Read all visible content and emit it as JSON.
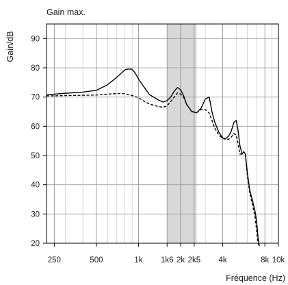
{
  "chart_data": {
    "type": "line",
    "title": "Gain max.",
    "ylabel": "Gain/dB",
    "xlabel": "Fréquence (Hz)",
    "x_scale": "log",
    "xlim": [
      220,
      10000
    ],
    "ylim": [
      20,
      95
    ],
    "grid": true,
    "x_ticks": [
      {
        "value": 250,
        "label": "250"
      },
      {
        "value": 500,
        "label": "500"
      },
      {
        "value": 1000,
        "label": "1k"
      },
      {
        "value": 1600,
        "label": "1k6"
      },
      {
        "value": 2000,
        "label": "2k"
      },
      {
        "value": 2500,
        "label": "2k5"
      },
      {
        "value": 4000,
        "label": "4k"
      },
      {
        "value": 8000,
        "label": "8k"
      },
      {
        "value": 10000,
        "label": "10k"
      }
    ],
    "y_ticks": [
      {
        "value": 20,
        "label": "20"
      },
      {
        "value": 30,
        "label": "30"
      },
      {
        "value": 40,
        "label": "40"
      },
      {
        "value": 50,
        "label": "50"
      },
      {
        "value": 60,
        "label": "60"
      },
      {
        "value": 70,
        "label": "70"
      },
      {
        "value": 80,
        "label": "80"
      },
      {
        "value": 90,
        "label": "90"
      }
    ],
    "shaded_band": {
      "x_from": 1600,
      "x_to": 2600,
      "color": "#d8d8d8"
    },
    "series": [
      {
        "style": "solid",
        "color": "#000000",
        "x": [
          220,
          250,
          300,
          400,
          500,
          600,
          700,
          800,
          850,
          900,
          950,
          1000,
          1100,
          1200,
          1400,
          1500,
          1600,
          1700,
          1800,
          1900,
          2000,
          2100,
          2200,
          2400,
          2600,
          2800,
          3000,
          3200,
          3350,
          3500,
          3750,
          4000,
          4200,
          4400,
          4600,
          4800,
          5000,
          5150,
          5300,
          5500,
          5650,
          5800,
          6000,
          6250,
          6500,
          6800,
          7000,
          7150,
          7300
        ],
        "y": [
          70.7,
          71.0,
          71.3,
          71.7,
          72.3,
          74.2,
          76.8,
          79.3,
          79.6,
          79.5,
          78.1,
          76.2,
          73.3,
          70.8,
          68.9,
          68.3,
          68.8,
          70.0,
          72.0,
          73.3,
          72.5,
          70.5,
          67.6,
          65.0,
          64.6,
          66.2,
          69.3,
          70.0,
          65.0,
          61.5,
          58.0,
          56.0,
          55.8,
          56.6,
          58.3,
          61.3,
          62.0,
          58.5,
          53.5,
          50.5,
          51.3,
          50.5,
          44.0,
          38.0,
          35.0,
          31.0,
          27.0,
          22.0,
          19.0
        ]
      },
      {
        "style": "dashed",
        "color": "#000000",
        "x": [
          220,
          250,
          300,
          400,
          500,
          600,
          700,
          800,
          900,
          1000,
          1100,
          1200,
          1400,
          1500,
          1600,
          1700,
          1800,
          1900,
          2000,
          2100,
          2200,
          2400,
          2600,
          2800,
          3000,
          3200,
          3350,
          3500,
          3750,
          4000,
          4200,
          4400,
          4600,
          4800,
          5000,
          5150,
          5300,
          5500,
          5650,
          5800,
          6000,
          6250,
          6500,
          6800,
          7000,
          7150,
          7300
        ],
        "y": [
          70.4,
          70.4,
          70.5,
          70.6,
          70.7,
          71.0,
          71.2,
          71.2,
          70.5,
          69.8,
          68.5,
          67.6,
          66.7,
          66.5,
          67.0,
          68.5,
          70.0,
          71.4,
          71.0,
          70.0,
          67.6,
          65.1,
          64.7,
          65.7,
          65.7,
          64.5,
          62.0,
          59.5,
          57.0,
          55.8,
          55.6,
          55.5,
          56.3,
          57.5,
          57.0,
          54.0,
          50.5,
          50.5,
          51.3,
          50.5,
          43.0,
          37.0,
          33.5,
          29.0,
          24.0,
          20.0,
          19.0
        ]
      }
    ]
  }
}
